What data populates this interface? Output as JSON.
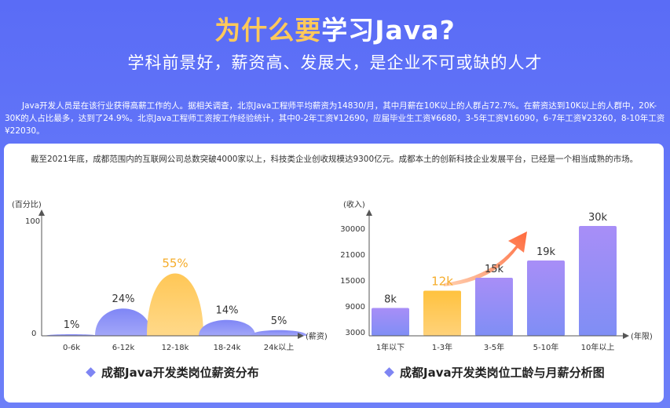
{
  "header": {
    "title_highlight": "为什么要",
    "title_rest": "学习Java?",
    "subtitle": "学科前景好，薪资高、发展大，是企业不可或缺的人才"
  },
  "intro": "Java开发人员是在该行业获得高薪工作的人。据相关调查，北京Java工程师平均薪资为14830/月，其中月薪在10K以上的人群占72.7%。在薪资达到10K以上的人群中，20K-30K的人占比最多，达到了24.9%。北京Java工程师工资按工作经验统计，其中0-2年工资¥12690，应届毕业生工资¥6680，3-5年工资¥16090，6-7年工资¥23260，8-10年工资¥22030。",
  "card_text": "截至2021年底，成都范围内的互联网公司总数突破4000家以上，科技类企业创收规模达9300亿元。成都本土的创新科技企业发展平台，已经是一个相当成熟的市场。",
  "colors": {
    "accent": "#ffc95a",
    "purple": "#8a8cf5",
    "background": "#5a6cf6"
  },
  "chart_data": [
    {
      "type": "area",
      "ylabel": "(百分比)",
      "xlabel": "(薪资)",
      "yticks": [
        "100",
        "0"
      ],
      "ylim": [
        0,
        100
      ],
      "categories": [
        "0-6k",
        "6-12k",
        "12-18k",
        "18-24k",
        "24k以上"
      ],
      "values": [
        1,
        24,
        55,
        14,
        5
      ],
      "labels": [
        "1%",
        "24%",
        "55%",
        "14%",
        "5%"
      ],
      "highlight_index": 2,
      "caption": "成都Java开发类岗位薪资分布"
    },
    {
      "type": "bar",
      "ylabel": "(收入)",
      "xlabel": "(年限)",
      "yticks": [
        "30000",
        "21000",
        "15000",
        "9000",
        "3000"
      ],
      "categories": [
        "1年以下",
        "1-3年",
        "3-5年",
        "5-10年",
        "10年以上"
      ],
      "values": [
        8000,
        12000,
        15000,
        19000,
        30000
      ],
      "labels": [
        "8k",
        "12k",
        "15k",
        "19k",
        "30k"
      ],
      "highlight_index": 1,
      "caption": "成都Java开发类岗位工龄与月薪分析图"
    }
  ]
}
